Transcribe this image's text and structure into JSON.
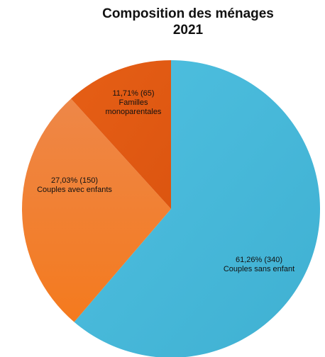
{
  "chart_data": {
    "type": "pie",
    "title": [
      "Composition des ménages",
      "2021"
    ],
    "slices": [
      {
        "label": "Couples sans enfant",
        "value": 340,
        "percent_text": "61,26% (340)",
        "color": "#47b8d9"
      },
      {
        "label": "Couples avec enfants",
        "value": 150,
        "percent_text": "27,03% (150)",
        "color": "#f07d26"
      },
      {
        "label": "Familles monoparentales",
        "value": 65,
        "percent_text": "11,71% (65)",
        "color": "#e35b14"
      }
    ],
    "start_angle_deg": 0,
    "direction": "clockwise"
  }
}
